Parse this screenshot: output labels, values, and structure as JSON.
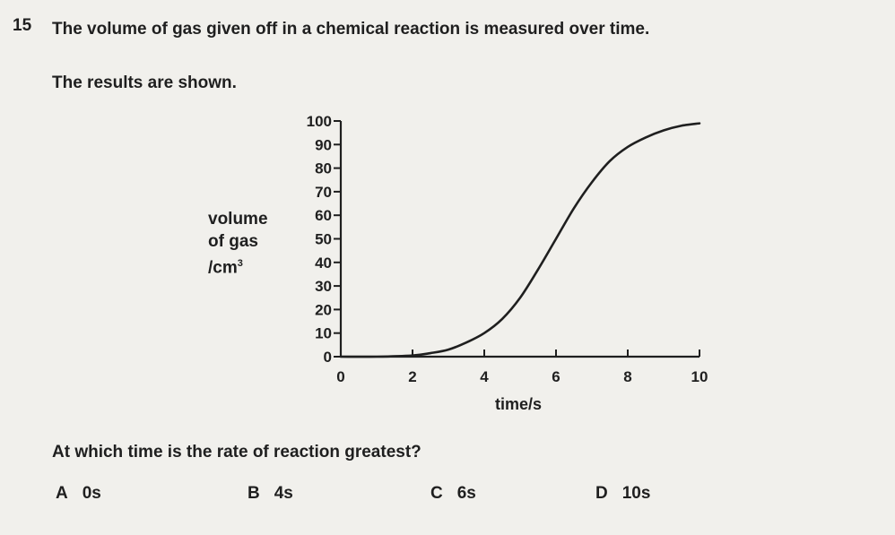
{
  "question": {
    "number": "15",
    "line1": "The volume of gas given off in a chemical reaction is measured over time.",
    "line2": "The results are shown.",
    "prompt": "At which time is the rate of reaction greatest?"
  },
  "options": [
    {
      "letter": "A",
      "value": "0s"
    },
    {
      "letter": "B",
      "value": "4s"
    },
    {
      "letter": "C",
      "value": "6s"
    },
    {
      "letter": "D",
      "value": "10s"
    }
  ],
  "chart_data": {
    "type": "line",
    "ylabel_lines": [
      "volume",
      "of gas",
      "/cm3"
    ],
    "xlabel": "time/s",
    "xlim": [
      0,
      10
    ],
    "ylim": [
      0,
      100
    ],
    "xticks": [
      0,
      2,
      4,
      6,
      8,
      10
    ],
    "yticks": [
      0,
      10,
      20,
      30,
      40,
      50,
      60,
      70,
      80,
      90,
      100
    ],
    "grid": false,
    "series": [
      {
        "x": [
          0,
          1,
          2,
          2.5,
          3,
          3.5,
          4,
          4.5,
          5,
          5.5,
          6,
          6.5,
          7,
          7.5,
          8,
          8.5,
          9,
          9.5,
          10
        ],
        "y": [
          0,
          0,
          0.5,
          1.5,
          3,
          6,
          10,
          16,
          25,
          37,
          50,
          63,
          74,
          83,
          89,
          93,
          96,
          98,
          99
        ]
      }
    ]
  }
}
